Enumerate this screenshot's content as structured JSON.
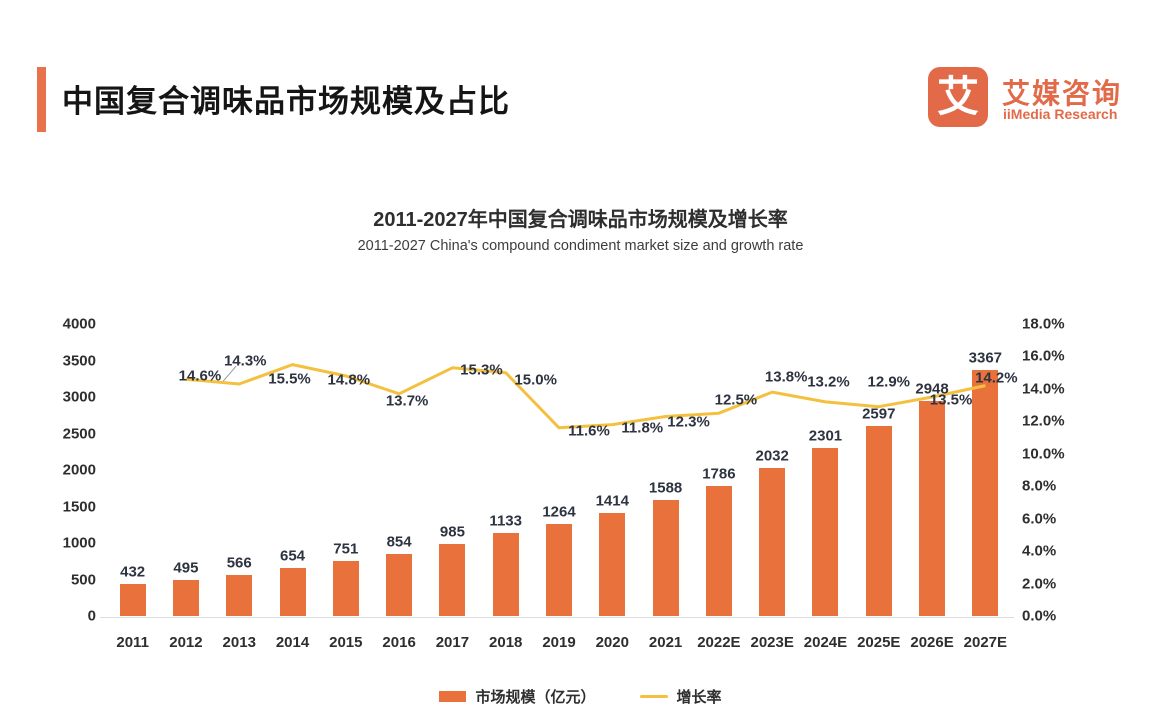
{
  "page": {
    "header": {
      "title": "中国复合调味品市场规模及占比"
    },
    "logo": {
      "icon_char": "艾",
      "name_cn": "艾媒咨询",
      "name_en": "iiMedia Research"
    },
    "colors": {
      "brand_orange": "#e26a49",
      "accent_bar": "#e8724a",
      "bar_fill": "#e8713c",
      "line_stroke": "#f3c13f",
      "text_dark": "#2e2e2e"
    }
  },
  "chart_data": {
    "type": "bar",
    "title": "2011-2027年中国复合调味品市场规模及增长率",
    "subtitle": "2011-2027 China's compound condiment market size and growth rate",
    "categories": [
      "2011",
      "2012",
      "2013",
      "2014",
      "2015",
      "2016",
      "2017",
      "2018",
      "2019",
      "2020",
      "2021",
      "2022E",
      "2023E",
      "2024E",
      "2025E",
      "2026E",
      "2027E"
    ],
    "series": [
      {
        "name": "市场规模（亿元）",
        "type": "bar",
        "axis": "left",
        "color": "#e8713c",
        "values": [
          432,
          495,
          566,
          654,
          751,
          854,
          985,
          1133,
          1264,
          1414,
          1588,
          1786,
          2032,
          2301,
          2597,
          2948,
          3367
        ]
      },
      {
        "name": "增长率",
        "type": "line",
        "axis": "right",
        "color": "#f3c13f",
        "values": [
          null,
          14.6,
          14.3,
          15.5,
          14.8,
          13.7,
          15.3,
          15.0,
          11.6,
          11.8,
          12.3,
          12.5,
          13.8,
          13.2,
          12.9,
          13.5,
          14.2
        ]
      }
    ],
    "left_axis": {
      "min": 0,
      "max": 4000,
      "step": 500,
      "ticks": [
        "4000",
        "3500",
        "3000",
        "2500",
        "2000",
        "1500",
        "1000",
        "500",
        "0"
      ]
    },
    "right_axis": {
      "min": 0,
      "max": 18,
      "step": 2,
      "ticks": [
        "18.0%",
        "16.0%",
        "14.0%",
        "12.0%",
        "10.0%",
        "8.0%",
        "6.0%",
        "4.0%",
        "2.0%",
        "0.0%"
      ]
    },
    "grid": false,
    "legend_position": "bottom",
    "growth_label_offsets": [
      null,
      [
        14,
        -3
      ],
      [
        6,
        -23
      ],
      [
        -3,
        14
      ],
      [
        3,
        4
      ],
      [
        8,
        7
      ],
      [
        29,
        2
      ],
      [
        30,
        7
      ],
      [
        30,
        3
      ],
      [
        30,
        3
      ],
      [
        23,
        6
      ],
      [
        17,
        -13
      ],
      [
        14,
        -15
      ],
      [
        3,
        -20
      ],
      [
        10,
        -25
      ],
      [
        19,
        3
      ],
      [
        11,
        -8
      ]
    ],
    "leader_line_index": 2
  }
}
